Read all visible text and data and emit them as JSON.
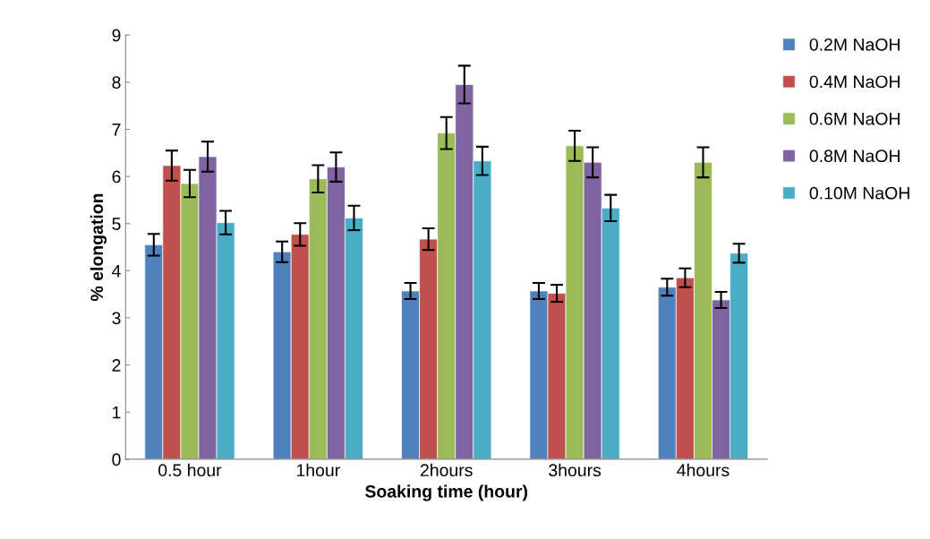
{
  "chart_data": {
    "type": "bar",
    "xlabel": "Soaking time (hour)",
    "ylabel": "% elongation",
    "categories": [
      "0.5 hour",
      "1hour",
      "2hours",
      "3hours",
      "4hours"
    ],
    "series": [
      {
        "name": "0.2M NaOH",
        "color": "#4f81bd",
        "values": [
          4.55,
          4.4,
          3.57,
          3.57,
          3.65
        ],
        "errors": [
          0.23,
          0.22,
          0.17,
          0.17,
          0.18
        ]
      },
      {
        "name": "0.4M NaOH",
        "color": "#c0504d",
        "values": [
          6.23,
          4.77,
          4.67,
          3.52,
          3.85
        ],
        "errors": [
          0.32,
          0.24,
          0.23,
          0.18,
          0.2
        ]
      },
      {
        "name": "0.6M NaOH",
        "color": "#9bbb59",
        "values": [
          5.85,
          5.95,
          6.92,
          6.65,
          6.3
        ],
        "errors": [
          0.29,
          0.29,
          0.34,
          0.32,
          0.32
        ]
      },
      {
        "name": "0.8M NaOH",
        "color": "#8064a2",
        "values": [
          6.42,
          6.2,
          7.95,
          6.3,
          3.38
        ],
        "errors": [
          0.32,
          0.31,
          0.4,
          0.32,
          0.17
        ]
      },
      {
        "name": "0.10M NaOH",
        "color": "#4bacc6",
        "values": [
          5.02,
          5.12,
          6.33,
          5.33,
          4.37
        ],
        "errors": [
          0.25,
          0.26,
          0.3,
          0.28,
          0.2
        ]
      }
    ],
    "ylim": [
      0,
      9
    ],
    "yticks": [
      0,
      1,
      2,
      3,
      4,
      5,
      6,
      7,
      8,
      9
    ],
    "grid": false,
    "legend": "top right"
  }
}
